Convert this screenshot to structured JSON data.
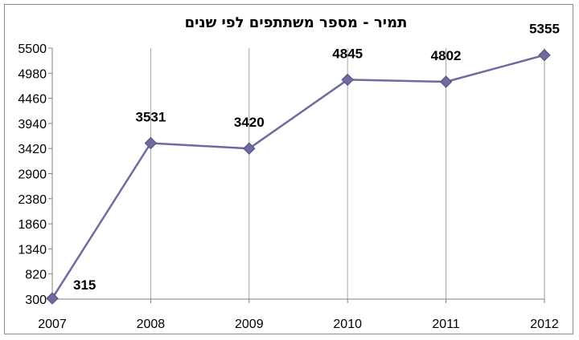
{
  "chart_data": {
    "type": "line",
    "title": "תמיר - מספר משתתפים לפי שנים",
    "xlabel": "",
    "ylabel": "",
    "categories": [
      "2007",
      "2008",
      "2009",
      "2010",
      "2011",
      "2012"
    ],
    "series": [
      {
        "values": [
          315,
          3531,
          3420,
          4845,
          4802,
          5355
        ],
        "color": "#6c6c9e",
        "marker": "diamond"
      }
    ],
    "data_labels": [
      "315",
      "3531",
      "3420",
      "4845",
      "4802",
      "5355"
    ],
    "ylim": [
      300,
      5500
    ],
    "yticks": [
      300,
      820,
      1340,
      1860,
      2380,
      2900,
      3420,
      3940,
      4460,
      4980,
      5500
    ],
    "grid": "vertical",
    "legend": "none"
  }
}
